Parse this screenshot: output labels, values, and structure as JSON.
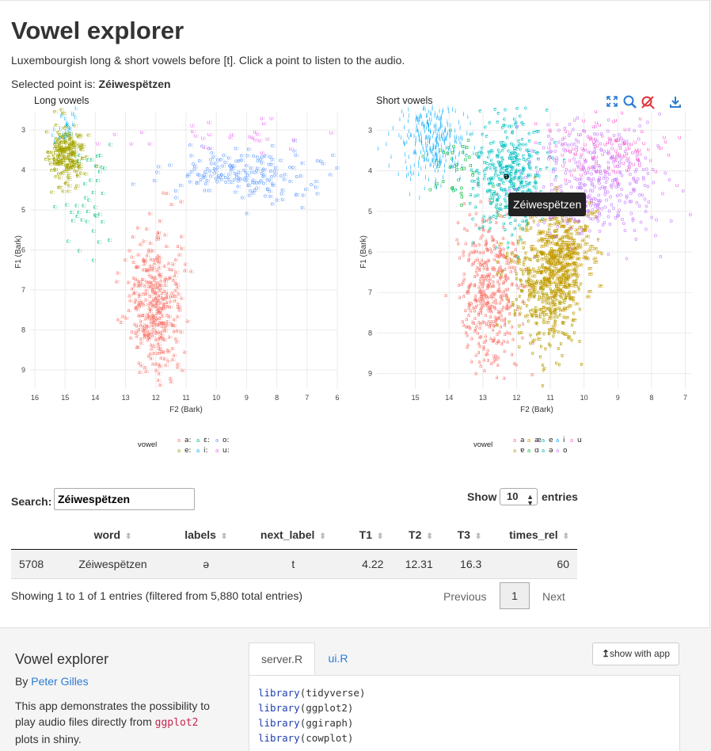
{
  "app": {
    "title": "Vowel explorer",
    "subtitle": "Luxembourgish long & short vowels before [t]. Click a point to listen to the audio.",
    "selected_prefix": "Selected point is: ",
    "selected_value": "Zéiwespëtzen"
  },
  "chart_data": [
    {
      "type": "scatter",
      "title": "Long vowels",
      "xlabel": "F2 (Bark)",
      "ylabel": "F1 (Bark)",
      "xlim": [
        16,
        6
      ],
      "ylim": [
        2.7,
        9.4
      ],
      "x_reversed": true,
      "y_reversed": true,
      "x_ticks": [
        16,
        15,
        14,
        13,
        12,
        11,
        10,
        9,
        8,
        7,
        6
      ],
      "y_ticks": [
        3,
        4,
        5,
        6,
        7,
        8,
        9
      ],
      "grid": true,
      "legend_title": "vowel",
      "legend_position": "bottom",
      "series": [
        {
          "name": "a:",
          "color": "#F8766D",
          "center": [
            12.0,
            7.4
          ],
          "spread": [
            0.45,
            0.9
          ],
          "count": 360
        },
        {
          "name": "e:",
          "color": "#A3A500",
          "center": [
            14.9,
            3.7
          ],
          "spread": [
            0.28,
            0.35
          ],
          "count": 220
        },
        {
          "name": "ɛ:",
          "color": "#00BF7D",
          "center": [
            14.2,
            5.0
          ],
          "spread": [
            0.35,
            0.8
          ],
          "count": 40
        },
        {
          "name": "i:",
          "color": "#00B0F6",
          "center": [
            15.0,
            3.0
          ],
          "spread": [
            0.25,
            0.25
          ],
          "count": 25
        },
        {
          "name": "o:",
          "color": "#619CFF",
          "center": [
            8.9,
            4.1
          ],
          "spread": [
            1.3,
            0.35
          ],
          "count": 180
        },
        {
          "name": "u:",
          "color": "#E76BF3",
          "center": [
            9.5,
            3.2
          ],
          "spread": [
            2.0,
            0.25
          ],
          "count": 30
        }
      ],
      "legend": [
        {
          "label": "a:",
          "color": "#F8766D"
        },
        {
          "label": "e:",
          "color": "#A3A500"
        },
        {
          "label": "ɛ:",
          "color": "#00BF7D"
        },
        {
          "label": "i:",
          "color": "#00B0F6"
        },
        {
          "label": "o:",
          "color": "#619CFF"
        },
        {
          "label": "u:",
          "color": "#E76BF3"
        }
      ]
    },
    {
      "type": "scatter",
      "title": "Short vowels",
      "xlabel": "F2 (Bark)",
      "ylabel": "F1 (Bark)",
      "xlim": [
        16,
        6.8
      ],
      "ylim": [
        2.7,
        9.3
      ],
      "x_reversed": true,
      "y_reversed": true,
      "x_ticks": [
        15,
        14,
        13,
        12,
        11,
        10,
        9,
        8,
        7
      ],
      "y_ticks": [
        3,
        4,
        5,
        6,
        7,
        8,
        9
      ],
      "grid": true,
      "legend_title": "vowel",
      "legend_position": "bottom",
      "series": [
        {
          "name": "a",
          "color": "#F8766D",
          "center": [
            12.8,
            7.0
          ],
          "spread": [
            0.45,
            0.9
          ],
          "count": 420
        },
        {
          "name": "ɐ",
          "color": "#B79F00",
          "center": [
            11.1,
            6.9
          ],
          "spread": [
            0.55,
            0.85
          ],
          "count": 380
        },
        {
          "name": "æ",
          "color": "#C49A00",
          "center": [
            10.7,
            6.2
          ],
          "spread": [
            0.5,
            0.6
          ],
          "count": 300
        },
        {
          "name": "ɑ",
          "color": "#00BA38",
          "center": [
            13.8,
            4.0
          ],
          "spread": [
            0.4,
            0.4
          ],
          "count": 40
        },
        {
          "name": "e",
          "color": "#00BFC4",
          "center": [
            12.2,
            4.0
          ],
          "spread": [
            0.55,
            0.6
          ],
          "count": 320
        },
        {
          "name": "ə",
          "color": "#00C0AF",
          "center": [
            12.3,
            5.0
          ],
          "spread": [
            0.5,
            0.5
          ],
          "count": 80
        },
        {
          "name": "i",
          "color": "#00A9FF",
          "center": [
            14.5,
            3.3
          ],
          "spread": [
            0.5,
            0.5
          ],
          "count": 320
        },
        {
          "name": "o",
          "color": "#C77CFF",
          "center": [
            9.6,
            4.3
          ],
          "spread": [
            0.9,
            0.7
          ],
          "count": 380
        },
        {
          "name": "u",
          "color": "#FF61CC",
          "center": [
            9.4,
            3.5
          ],
          "spread": [
            0.9,
            0.4
          ],
          "count": 120
        }
      ],
      "legend": [
        {
          "label": "a",
          "color": "#F8766D"
        },
        {
          "label": "ɐ",
          "color": "#B79F00"
        },
        {
          "label": "æ",
          "color": "#C49A00"
        },
        {
          "label": "ɑ",
          "color": "#00BA38"
        },
        {
          "label": "e",
          "color": "#00BFC4"
        },
        {
          "label": "ə",
          "color": "#00C0AF"
        },
        {
          "label": "i",
          "color": "#00A9FF"
        },
        {
          "label": "o",
          "color": "#C77CFF"
        },
        {
          "label": "u",
          "color": "#FF61CC"
        }
      ],
      "highlight": {
        "label": "ə",
        "x": 12.3,
        "y": 4.2,
        "tooltip": "Zéiwespëtzen"
      }
    }
  ],
  "toolbar": {
    "icons": [
      "fullscreen-icon",
      "zoom-icon",
      "reset-zoom-icon",
      "download-icon"
    ],
    "color": "#2a7bd4"
  },
  "table": {
    "search_label": "Search:",
    "search_value": "Zéiwespëtzen",
    "show_label": "Show",
    "entries_value": "10",
    "entries_label": "entries",
    "columns": [
      "",
      "word",
      "labels",
      "next_label",
      "T1",
      "T2",
      "T3",
      "times_rel"
    ],
    "rows": [
      [
        "5708",
        "Zéiwespëtzen",
        "ə",
        "t",
        "4.22",
        "12.31",
        "16.3",
        "60"
      ]
    ],
    "info": "Showing 1 to 1 of 1 entries (filtered from 5,880 total entries)",
    "prev_label": "Previous",
    "page_label": "1",
    "next_label": "Next"
  },
  "footer": {
    "title": "Vowel explorer",
    "by_prefix": "By ",
    "author": "Peter Gilles",
    "desc_before": "This app demonstrates the possibility to play audio files directly from ",
    "desc_code": "ggplot2",
    "desc_after": " plots in shiny.",
    "tab_server": "server.R",
    "tab_ui": "ui.R",
    "show_app_label": "show with app",
    "code_lines": [
      {
        "fn": "library",
        "arg": "tidyverse"
      },
      {
        "fn": "library",
        "arg": "ggplot2"
      },
      {
        "fn": "library",
        "arg": "ggiraph"
      },
      {
        "fn": "library",
        "arg": "cowplot"
      }
    ]
  }
}
